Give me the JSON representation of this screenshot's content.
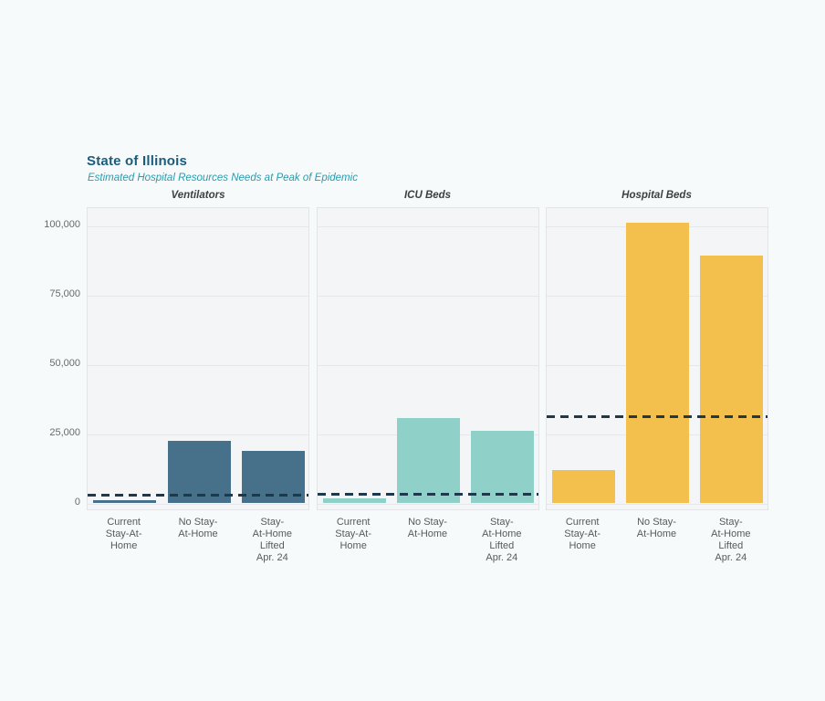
{
  "header": {
    "title": "State of Illinois",
    "subtitle": "Estimated Hospital Resources Needs at Peak of Epidemic",
    "title_color": "#1b5c7d",
    "subtitle_color": "#2a9cae"
  },
  "chart_data": {
    "type": "bar",
    "facets": true,
    "categories": [
      "Current Stay-At-Home",
      "No Stay-At-Home",
      "Stay-At-Home Lifted Apr. 24"
    ],
    "category_label_lines": [
      [
        "Current",
        "Stay-At-",
        "Home"
      ],
      [
        "No Stay-",
        "At-Home"
      ],
      [
        "Stay-",
        "At-Home",
        "Lifted",
        "Apr. 24"
      ]
    ],
    "y_ticks": [
      0,
      25000,
      50000,
      75000,
      100000
    ],
    "y_tick_labels": [
      "0",
      "25,000",
      "50,000",
      "75,000",
      "100,000"
    ],
    "ylim": [
      0,
      106500
    ],
    "grid": true,
    "legend_position": "none",
    "panels": [
      {
        "title": "Ventilators",
        "bar_color": "#47708a",
        "values": [
          1250,
          22500,
          19000
        ],
        "capacity_line": 3100
      },
      {
        "title": "ICU Beds",
        "bar_color": "#8fd0c9",
        "values": [
          1700,
          30900,
          26200
        ],
        "capacity_line": 3400
      },
      {
        "title": "Hospital Beds",
        "bar_color": "#f3c04e",
        "values": [
          11900,
          101200,
          89400
        ],
        "capacity_line": 31400
      }
    ],
    "capacity_line_color": "#1e384c",
    "capacity_line_style": "dashed"
  }
}
